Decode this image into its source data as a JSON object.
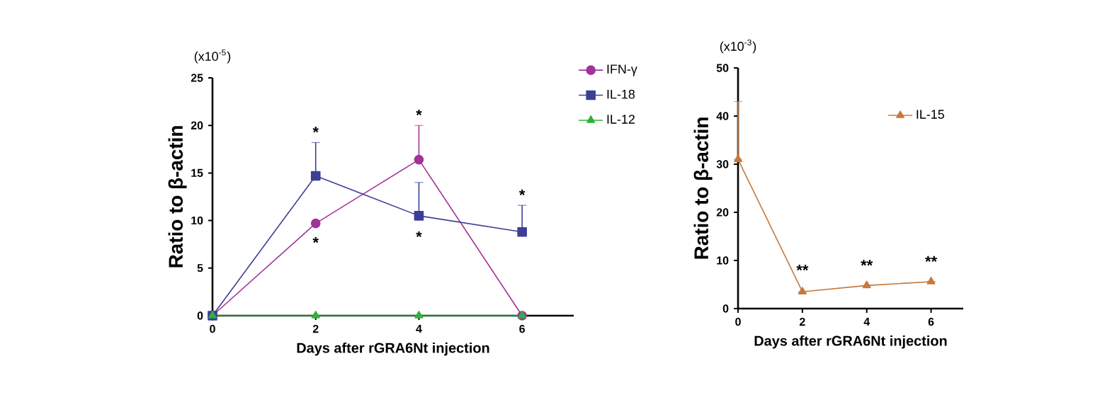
{
  "chart_data": [
    {
      "type": "line",
      "xlabel": "Days after rGRA6Nt injection",
      "ylabel": "Ratio to β-actin",
      "xlim": [
        0,
        7
      ],
      "xticks": [
        0,
        2,
        4,
        6
      ],
      "ylim": [
        0,
        25
      ],
      "yticks": [
        0,
        5,
        10,
        15,
        20,
        25
      ],
      "x": [
        0,
        2,
        4,
        6
      ],
      "legend": "top right",
      "series": [
        {
          "name": "IFN-γ",
          "color": "#a0349a",
          "marker": "circle",
          "values": [
            0,
            9.7,
            16.4,
            0
          ],
          "errors": [
            null,
            null,
            [
              16.4,
              20.0
            ],
            null
          ]
        },
        {
          "name": "IL-18",
          "color": "#3b3f96",
          "marker": "square",
          "values": [
            0,
            14.7,
            10.5,
            8.8
          ],
          "errors": [
            null,
            [
              14.7,
              18.2
            ],
            [
              10.5,
              14.0
            ],
            [
              8.8,
              11.6
            ]
          ]
        },
        {
          "name": "IL-12",
          "color": "#2db33a",
          "marker": "triangle",
          "values": [
            0,
            0,
            0,
            0
          ]
        }
      ],
      "annotations": [
        "(x10$^{-5}$)",
        "*",
        "*",
        "*",
        "*",
        "*"
      ]
    },
    {
      "type": "line",
      "xlabel": "Days after rGRA6Nt injection",
      "ylabel": "Ratio to β-actin",
      "xlim": [
        0,
        7
      ],
      "xticks": [
        0,
        2,
        4,
        6
      ],
      "ylim": [
        0,
        50
      ],
      "yticks": [
        0,
        10,
        20,
        30,
        40,
        50
      ],
      "x": [
        0,
        2,
        4,
        6
      ],
      "legend": "top right",
      "series": [
        {
          "name": "IL-15",
          "color": "#c8783a",
          "marker": "triangle",
          "values": [
            31,
            3.5,
            4.8,
            5.6
          ],
          "errors": [
            [
              31,
              43
            ],
            null,
            null,
            null
          ]
        }
      ],
      "annotations": [
        "(x10$^{-3}$)",
        "**",
        "**",
        "**"
      ]
    }
  ]
}
